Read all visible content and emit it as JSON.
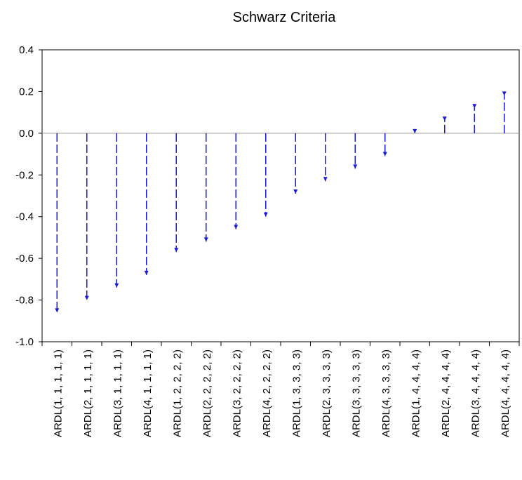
{
  "chart_data": {
    "type": "lollipop",
    "title": "Schwarz Criteria",
    "xlabel": "",
    "ylabel": "",
    "ylim": [
      -1.0,
      0.4
    ],
    "yticks": [
      0.4,
      0.2,
      0.0,
      -0.2,
      -0.4,
      -0.6,
      -0.8,
      -1.0
    ],
    "ytick_labels": [
      "0.4",
      "0.2",
      "0.0",
      "-0.2",
      "-0.4",
      "-0.6",
      "-0.8",
      "-1.0"
    ],
    "grid": false,
    "legend": "none",
    "colors": {
      "series": "#1a1adb",
      "zero_line": "#9a9a9a",
      "axis": "#000000"
    },
    "categories": [
      "ARDL(1, 1, 1, 1, 1)",
      "ARDL(2, 1, 1, 1, 1)",
      "ARDL(3, 1, 1, 1, 1)",
      "ARDL(4, 1, 1, 1, 1)",
      "ARDL(1, 2, 2, 2, 2)",
      "ARDL(2, 2, 2, 2, 2)",
      "ARDL(3, 2, 2, 2, 2)",
      "ARDL(4, 2, 2, 2, 2)",
      "ARDL(1, 3, 3, 3, 3)",
      "ARDL(2, 3, 3, 3, 3)",
      "ARDL(3, 3, 3, 3, 3)",
      "ARDL(4, 3, 3, 3, 3)",
      "ARDL(1, 4, 4, 4, 4)",
      "ARDL(2, 4, 4, 4, 4)",
      "ARDL(3, 4, 4, 4, 4)",
      "ARDL(4, 4, 4, 4, 4)"
    ],
    "values": [
      -0.86,
      -0.8,
      -0.74,
      -0.68,
      -0.57,
      -0.52,
      -0.46,
      -0.4,
      -0.29,
      -0.23,
      -0.17,
      -0.11,
      0.02,
      0.08,
      0.14,
      0.2
    ]
  }
}
